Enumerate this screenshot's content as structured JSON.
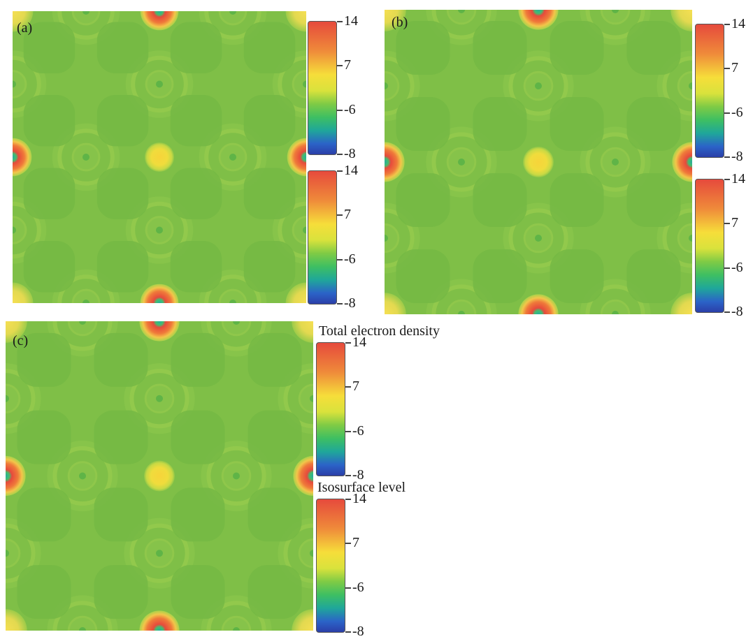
{
  "panels": [
    {
      "label": "(a)"
    },
    {
      "label": "(b)"
    },
    {
      "label": "(c)"
    }
  ],
  "colorbar_ticks": [
    "14",
    "7",
    "-6",
    "-8"
  ],
  "colorbar_titles": {
    "density": "Total electron density",
    "isosurface": "Isosurface level"
  },
  "colors": {
    "background_green": "#7fbf47",
    "high": "#e64a3c",
    "mid": "#f6de3a",
    "low": "#2b3fa8"
  }
}
